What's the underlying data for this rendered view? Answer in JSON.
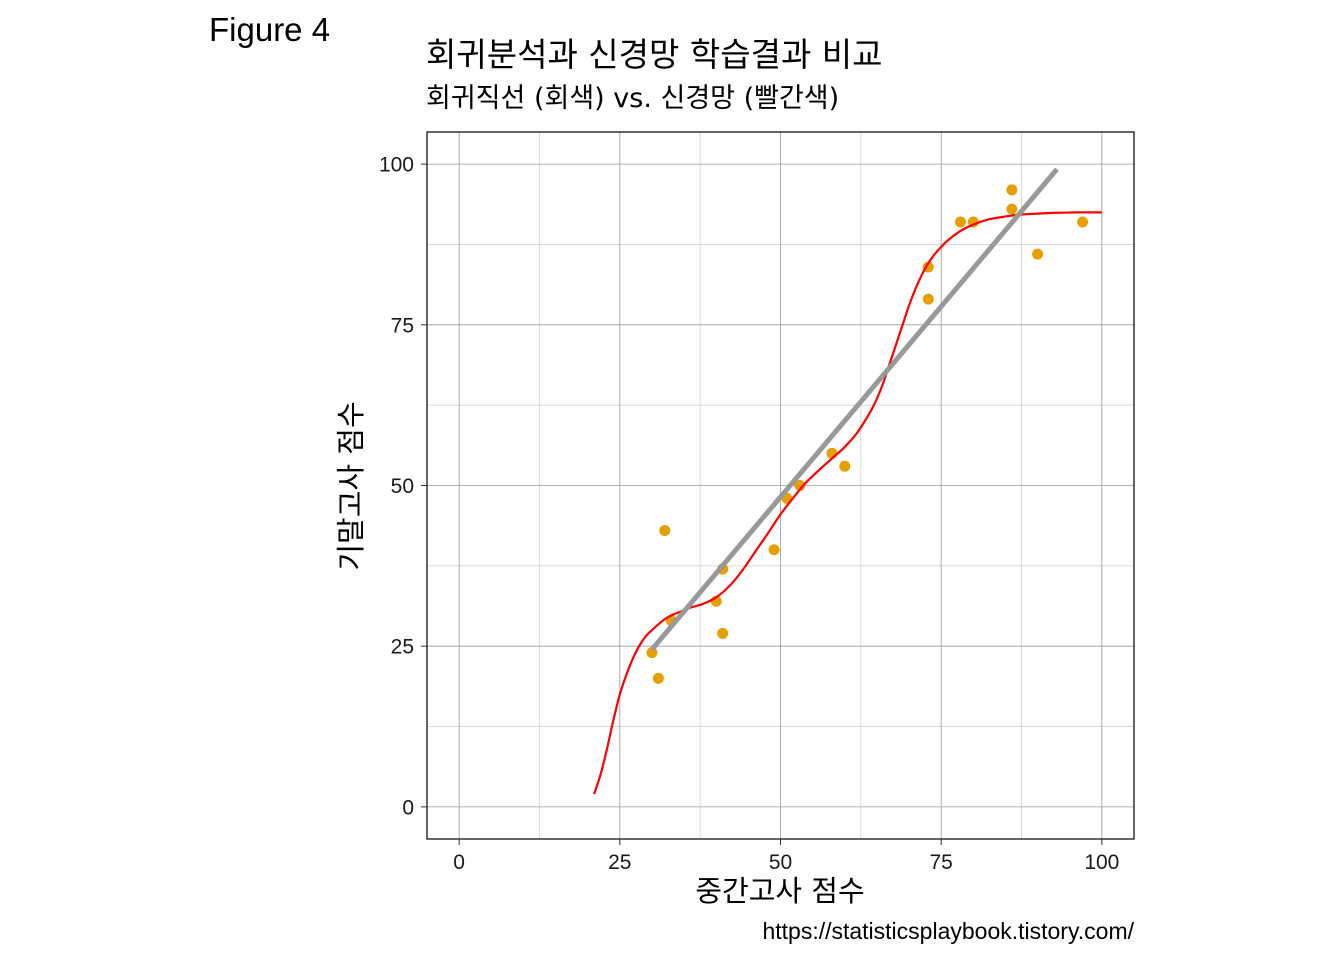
{
  "figure_label": "Figure 4",
  "caption": "https://statisticsplaybook.tistory.com/",
  "colors": {
    "points": "#E69F00",
    "regression_line": "#999999",
    "neural_net_curve": "#FF0000",
    "major_grid": "#999999",
    "minor_grid": "#CCCCCC",
    "panel_border": "#000000"
  },
  "chart_data": {
    "type": "scatter",
    "title": "회귀분석과 신경망 학습결과 비교",
    "subtitle": "회귀직선 (회색) vs. 신경망 (빨간색)",
    "xlabel": "중간고사 점수",
    "ylabel": "기말고사 점수",
    "xlim": [
      -5,
      105
    ],
    "ylim": [
      -5,
      105
    ],
    "x_ticks": [
      0,
      25,
      50,
      75,
      100
    ],
    "y_ticks": [
      0,
      25,
      50,
      75,
      100
    ],
    "x_minor_ticks": [
      12.5,
      37.5,
      62.5,
      87.5
    ],
    "y_minor_ticks": [
      12.5,
      37.5,
      62.5,
      87.5
    ],
    "grid": true,
    "series": [
      {
        "kind": "points",
        "x": [
          30,
          31,
          32,
          33,
          40,
          41,
          41,
          49,
          51,
          53,
          58,
          60,
          73,
          73,
          78,
          80,
          86,
          86,
          90,
          97
        ],
        "y": [
          24,
          20,
          43,
          29,
          32,
          37,
          27,
          40,
          48,
          50,
          55,
          53,
          84,
          79,
          91,
          91,
          96,
          93,
          86,
          91
        ]
      },
      {
        "kind": "line",
        "x": [
          30,
          93
        ],
        "y": [
          24.5,
          99.2
        ]
      },
      {
        "kind": "line",
        "x": [
          21,
          22,
          23,
          24,
          25,
          26,
          27,
          28,
          29,
          30,
          31,
          32,
          33,
          34,
          35,
          36,
          38,
          40,
          42,
          44,
          46,
          48,
          50,
          52,
          54,
          56,
          58,
          60,
          62,
          64,
          65,
          66,
          67,
          68,
          69,
          70,
          71,
          72,
          73,
          74,
          75,
          76,
          78,
          80,
          82,
          84,
          86,
          88,
          90,
          92,
          94,
          96,
          98,
          100
        ],
        "y": [
          2,
          5,
          9,
          13.5,
          17.5,
          20.5,
          23,
          25,
          26.5,
          27.5,
          28.4,
          29.2,
          29.8,
          30.2,
          30.6,
          31,
          31.6,
          32.6,
          34.3,
          36.7,
          39.6,
          42.5,
          45.5,
          48.1,
          50.5,
          52.4,
          54.2,
          56,
          58.3,
          61.5,
          63.5,
          66,
          69,
          72,
          75,
          78,
          80.6,
          82.8,
          84.6,
          86,
          87.1,
          88.1,
          89.6,
          90.6,
          91.3,
          91.7,
          92,
          92.2,
          92.3,
          92.4,
          92.45,
          92.5,
          92.5,
          92.5
        ]
      }
    ]
  }
}
